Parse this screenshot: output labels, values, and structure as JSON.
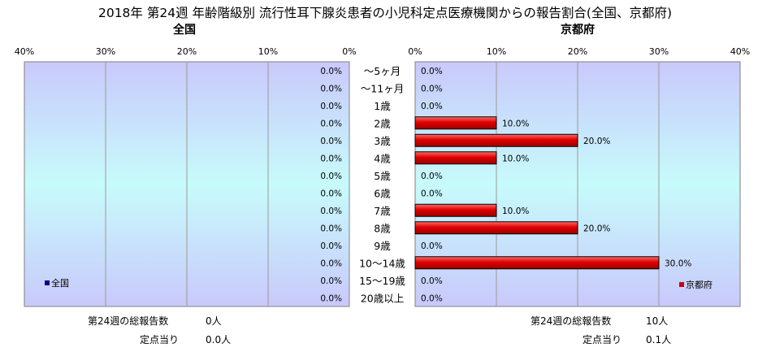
{
  "chart_data": {
    "type": "bar",
    "orientation": "horizontal",
    "title": "2018年 第24週 年齢階級別 流行性耳下腺炎患者の小児科定点医療機関からの報告割合(全国、京都府)",
    "categories": [
      "～5ヶ月",
      "～11ヶ月",
      "1歳",
      "2歳",
      "3歳",
      "4歳",
      "5歳",
      "6歳",
      "7歳",
      "8歳",
      "9歳",
      "10～14歳",
      "15～19歳",
      "20歳以上"
    ],
    "xlim": [
      0,
      40
    ],
    "x_ticks": [
      "0%",
      "10%",
      "20%",
      "30%",
      "40%"
    ],
    "x_ticks_left": [
      "40%",
      "30%",
      "20%",
      "10%",
      "0%"
    ],
    "grid": true,
    "panels": [
      {
        "name": "全国",
        "side": "left",
        "legend": "全国",
        "legend_position": "bottom-left",
        "color": "#00008b",
        "values": [
          0,
          0,
          0,
          0,
          0,
          0,
          0,
          0,
          0,
          0,
          0,
          0,
          0,
          0
        ],
        "labels": [
          "0.0%",
          "0.0%",
          "0.0%",
          "0.0%",
          "0.0%",
          "0.0%",
          "0.0%",
          "0.0%",
          "0.0%",
          "0.0%",
          "0.0%",
          "0.0%",
          "0.0%",
          "0.0%"
        ],
        "footer": [
          {
            "label": "第24週の総報告数",
            "value": "0人"
          },
          {
            "label": "定点当り",
            "value": "0.0人"
          }
        ]
      },
      {
        "name": "京都府",
        "side": "right",
        "legend": "京都府",
        "legend_position": "bottom-right",
        "color": "#cc0000",
        "values": [
          0,
          0,
          0,
          10,
          20,
          10,
          0,
          0,
          10,
          20,
          0,
          30,
          0,
          0
        ],
        "labels": [
          "0.0%",
          "0.0%",
          "0.0%",
          "10.0%",
          "20.0%",
          "10.0%",
          "0.0%",
          "0.0%",
          "10.0%",
          "20.0%",
          "0.0%",
          "30.0%",
          "0.0%",
          "0.0%"
        ],
        "footer": [
          {
            "label": "第24週の総報告数",
            "value": "10人"
          },
          {
            "label": "定点当り",
            "value": "0.1人"
          }
        ]
      }
    ]
  }
}
